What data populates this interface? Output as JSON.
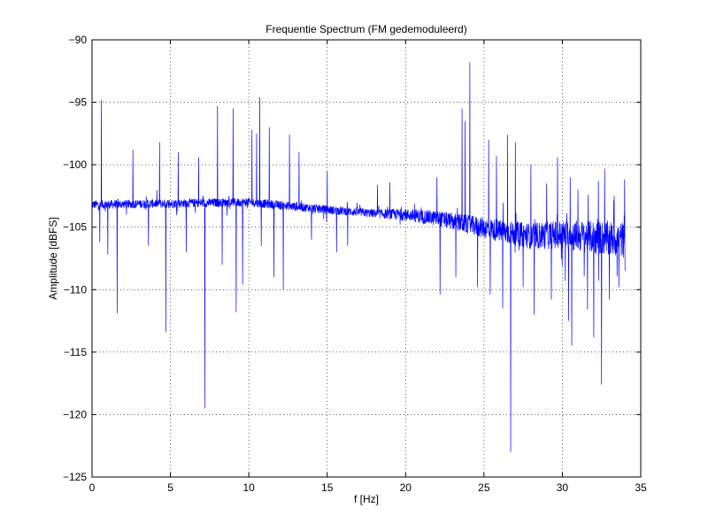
{
  "chart_data": {
    "type": "line",
    "title": "Frequentie Spectrum (FM gedemoduleerd)",
    "xlabel": "f [Hz]",
    "ylabel": "Amplitude [dBFS]",
    "xlim": [
      0,
      35
    ],
    "ylim": [
      -125,
      -90
    ],
    "xticks": [
      0,
      5,
      10,
      15,
      20,
      25,
      30,
      35
    ],
    "yticks": [
      -125,
      -120,
      -115,
      -110,
      -105,
      -100,
      -95,
      -90
    ],
    "xtick_labels": [
      "0",
      "5",
      "10",
      "15",
      "20",
      "25",
      "30",
      "35"
    ],
    "ytick_labels": [
      "−125",
      "−120",
      "−115",
      "−110",
      "−105",
      "−100",
      "−95",
      "−90"
    ],
    "grid": true,
    "series": [
      {
        "name": "spectrum",
        "color": "#0000ff",
        "x_start": 0,
        "x_end": 34,
        "baseline": [
          [
            0,
            -103.2
          ],
          [
            5,
            -103.1
          ],
          [
            10,
            -103.0
          ],
          [
            15,
            -103.6
          ],
          [
            18,
            -103.9
          ],
          [
            20,
            -104.0
          ],
          [
            22,
            -104.3
          ],
          [
            24,
            -104.8
          ],
          [
            26,
            -105.3
          ],
          [
            28,
            -105.7
          ],
          [
            30,
            -105.6
          ],
          [
            32,
            -105.8
          ],
          [
            34,
            -106.0
          ]
        ],
        "peaks": [
          [
            0.6,
            -94.8
          ],
          [
            1.0,
            -99.6
          ],
          [
            1.6,
            -99.8
          ],
          [
            2.6,
            -98.8
          ],
          [
            3.6,
            -98.6
          ],
          [
            4.3,
            -98.2
          ],
          [
            5.5,
            -99.0
          ],
          [
            6.8,
            -99.4
          ],
          [
            7.2,
            -99.2
          ],
          [
            8.0,
            -95.3
          ],
          [
            9.0,
            -95.5
          ],
          [
            9.6,
            -96.8
          ],
          [
            10.2,
            -97.2
          ],
          [
            10.5,
            -97.5
          ],
          [
            10.7,
            -94.6
          ],
          [
            11.3,
            -97.0
          ],
          [
            12.6,
            -97.6
          ],
          [
            13.2,
            -99.0
          ],
          [
            15.0,
            -100.5
          ],
          [
            16.3,
            -99.8
          ],
          [
            18.2,
            -101.6
          ],
          [
            19.0,
            -101.4
          ],
          [
            22.0,
            -101.0
          ],
          [
            23.6,
            -95.5
          ],
          [
            23.8,
            -96.5
          ],
          [
            24.1,
            -91.8
          ],
          [
            24.6,
            -97.3
          ],
          [
            25.3,
            -98.0
          ],
          [
            25.8,
            -99.3
          ],
          [
            26.5,
            -97.6
          ],
          [
            27.0,
            -98.2
          ],
          [
            27.5,
            -99.3
          ],
          [
            28.0,
            -100.0
          ],
          [
            29.0,
            -101.5
          ],
          [
            29.7,
            -99.4
          ],
          [
            30.5,
            -101.0
          ],
          [
            31.0,
            -102.0
          ],
          [
            32.3,
            -101.3
          ],
          [
            32.7,
            -100.3
          ],
          [
            33.3,
            -102.5
          ]
        ],
        "dips": [
          [
            0.5,
            -106.2
          ],
          [
            1.0,
            -107.2
          ],
          [
            1.6,
            -111.9
          ],
          [
            3.6,
            -106.5
          ],
          [
            4.7,
            -113.4
          ],
          [
            6.0,
            -107.0
          ],
          [
            7.2,
            -119.5
          ],
          [
            8.3,
            -108.0
          ],
          [
            9.2,
            -111.8
          ],
          [
            9.6,
            -109.6
          ],
          [
            10.8,
            -106.5
          ],
          [
            11.6,
            -109.0
          ],
          [
            12.2,
            -110.0
          ],
          [
            14.0,
            -106.0
          ],
          [
            15.6,
            -107.0
          ],
          [
            16.3,
            -106.5
          ],
          [
            22.2,
            -110.4
          ],
          [
            23.2,
            -109.0
          ],
          [
            24.6,
            -109.8
          ],
          [
            25.4,
            -110.4
          ],
          [
            26.2,
            -111.5
          ],
          [
            26.7,
            -123.0
          ],
          [
            27.5,
            -109.8
          ],
          [
            28.2,
            -112.0
          ],
          [
            29.3,
            -110.8
          ],
          [
            30.4,
            -112.5
          ],
          [
            30.6,
            -114.5
          ],
          [
            31.6,
            -111.6
          ],
          [
            32.0,
            -113.8
          ],
          [
            32.5,
            -117.6
          ],
          [
            33.0,
            -110.8
          ],
          [
            33.6,
            -109.8
          ],
          [
            34.0,
            -108.5
          ]
        ]
      }
    ]
  }
}
